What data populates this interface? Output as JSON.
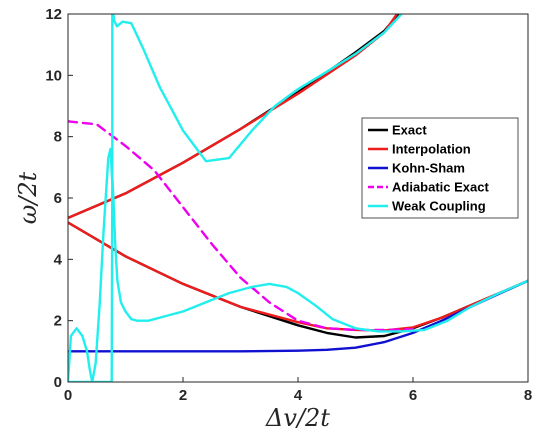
{
  "chart_data": {
    "type": "line",
    "title": "",
    "xlabel": "Δv/2t",
    "ylabel": "ω/2t",
    "xlim": [
      0,
      8
    ],
    "ylim": [
      0,
      12
    ],
    "xticks": [
      0,
      2,
      4,
      6,
      8
    ],
    "yticks": [
      0,
      2,
      4,
      6,
      8,
      10,
      12
    ],
    "grid": false,
    "legend_position": "right",
    "series": [
      {
        "name": "Exact",
        "color": "#000000",
        "dash": "solid",
        "segments": [
          {
            "x": [
              0,
              1,
              2,
              3,
              4,
              5,
              5.5,
              5.75
            ],
            "y": [
              5.35,
              6.15,
              7.15,
              8.25,
              9.45,
              10.75,
              11.45,
              12.0
            ]
          },
          {
            "x": [
              0,
              1,
              2,
              3,
              4,
              4.5,
              5,
              5.5,
              6,
              6.5,
              7,
              7.5,
              8
            ],
            "y": [
              5.2,
              4.1,
              3.2,
              2.45,
              1.85,
              1.6,
              1.45,
              1.5,
              1.75,
              2.1,
              2.5,
              2.9,
              3.3
            ]
          }
        ]
      },
      {
        "name": "Interpolation",
        "color": "#ee1c1c",
        "dash": "solid",
        "segments": [
          {
            "x": [
              0,
              1,
              2,
              3,
              4,
              5,
              5.5,
              5.72
            ],
            "y": [
              5.35,
              6.15,
              7.15,
              8.25,
              9.4,
              10.65,
              11.4,
              12.0
            ]
          },
          {
            "x": [
              0,
              1,
              2,
              3,
              4,
              4.5,
              5,
              5.5,
              6,
              6.5,
              7,
              7.5,
              8
            ],
            "y": [
              5.2,
              4.1,
              3.2,
              2.45,
              1.95,
              1.75,
              1.7,
              1.68,
              1.78,
              2.1,
              2.5,
              2.9,
              3.3
            ]
          }
        ]
      },
      {
        "name": "Kohn-Sham",
        "color": "#1010d0",
        "dash": "solid",
        "segments": [
          {
            "x": [
              0,
              1,
              2,
              3,
              4,
              4.5,
              5,
              5.5,
              6,
              6.5,
              7,
              7.5,
              8
            ],
            "y": [
              1.0,
              1.0,
              1.0,
              1.0,
              1.02,
              1.05,
              1.12,
              1.3,
              1.6,
              2.0,
              2.45,
              2.88,
              3.3
            ]
          }
        ]
      },
      {
        "name": "Adiabatic Exact",
        "color": "#ee00ee",
        "dash": "dashed",
        "segments": [
          {
            "x": [
              0,
              0.5,
              1,
              1.5,
              2,
              2.5,
              3,
              3.5,
              4,
              4.5,
              5,
              5.5,
              6
            ],
            "y": [
              8.5,
              8.4,
              7.7,
              6.9,
              5.7,
              4.5,
              3.4,
              2.6,
              2.0,
              1.75,
              1.7,
              1.7,
              1.72
            ]
          }
        ]
      },
      {
        "name": "Weak Coupling",
        "color": "#22eeee",
        "dash": "solid",
        "segments": [
          {
            "x": [
              0,
              0.05,
              0.15,
              0.25,
              0.33,
              0.38,
              0.42,
              0.48,
              0.55,
              0.62,
              0.7,
              0.74,
              0.77,
              0.77,
              0.79,
              0.8,
              0.85,
              0.95,
              1.1,
              1.3,
              1.6,
              2.0,
              2.4,
              2.8,
              3.2,
              3.6,
              4.0,
              4.4,
              5.0,
              5.5,
              5.8
            ],
            "y": [
              0,
              1.5,
              1.75,
              1.5,
              1.0,
              0.4,
              0,
              0.6,
              2.5,
              5.0,
              7.3,
              7.6,
              6.5,
              12.0,
              12.0,
              11.8,
              11.6,
              11.75,
              11.7,
              10.9,
              9.6,
              8.2,
              7.2,
              7.3,
              8.2,
              9.0,
              9.55,
              10.0,
              10.7,
              11.4,
              12.0
            ]
          },
          {
            "x": [
              0,
              0.76
            ],
            "y": [
              0,
              0
            ]
          },
          {
            "x": [
              0.76,
              0.77,
              0.79,
              0.82,
              0.86,
              0.92,
              1.0,
              1.1,
              1.2,
              1.4,
              1.6,
              1.8,
              2.0,
              2.4,
              2.8,
              3.2,
              3.5,
              3.8,
              4.0,
              4.3,
              4.6,
              5.0,
              5.4,
              5.8,
              6.2,
              6.6,
              7.0,
              7.5,
              8.0
            ],
            "y": [
              0,
              6.7,
              6.0,
              4.5,
              3.3,
              2.6,
              2.3,
              2.05,
              2.0,
              2.0,
              2.1,
              2.2,
              2.3,
              2.6,
              2.9,
              3.1,
              3.2,
              3.1,
              2.9,
              2.5,
              2.05,
              1.75,
              1.65,
              1.65,
              1.7,
              2.0,
              2.45,
              2.9,
              3.3
            ]
          }
        ]
      }
    ]
  }
}
